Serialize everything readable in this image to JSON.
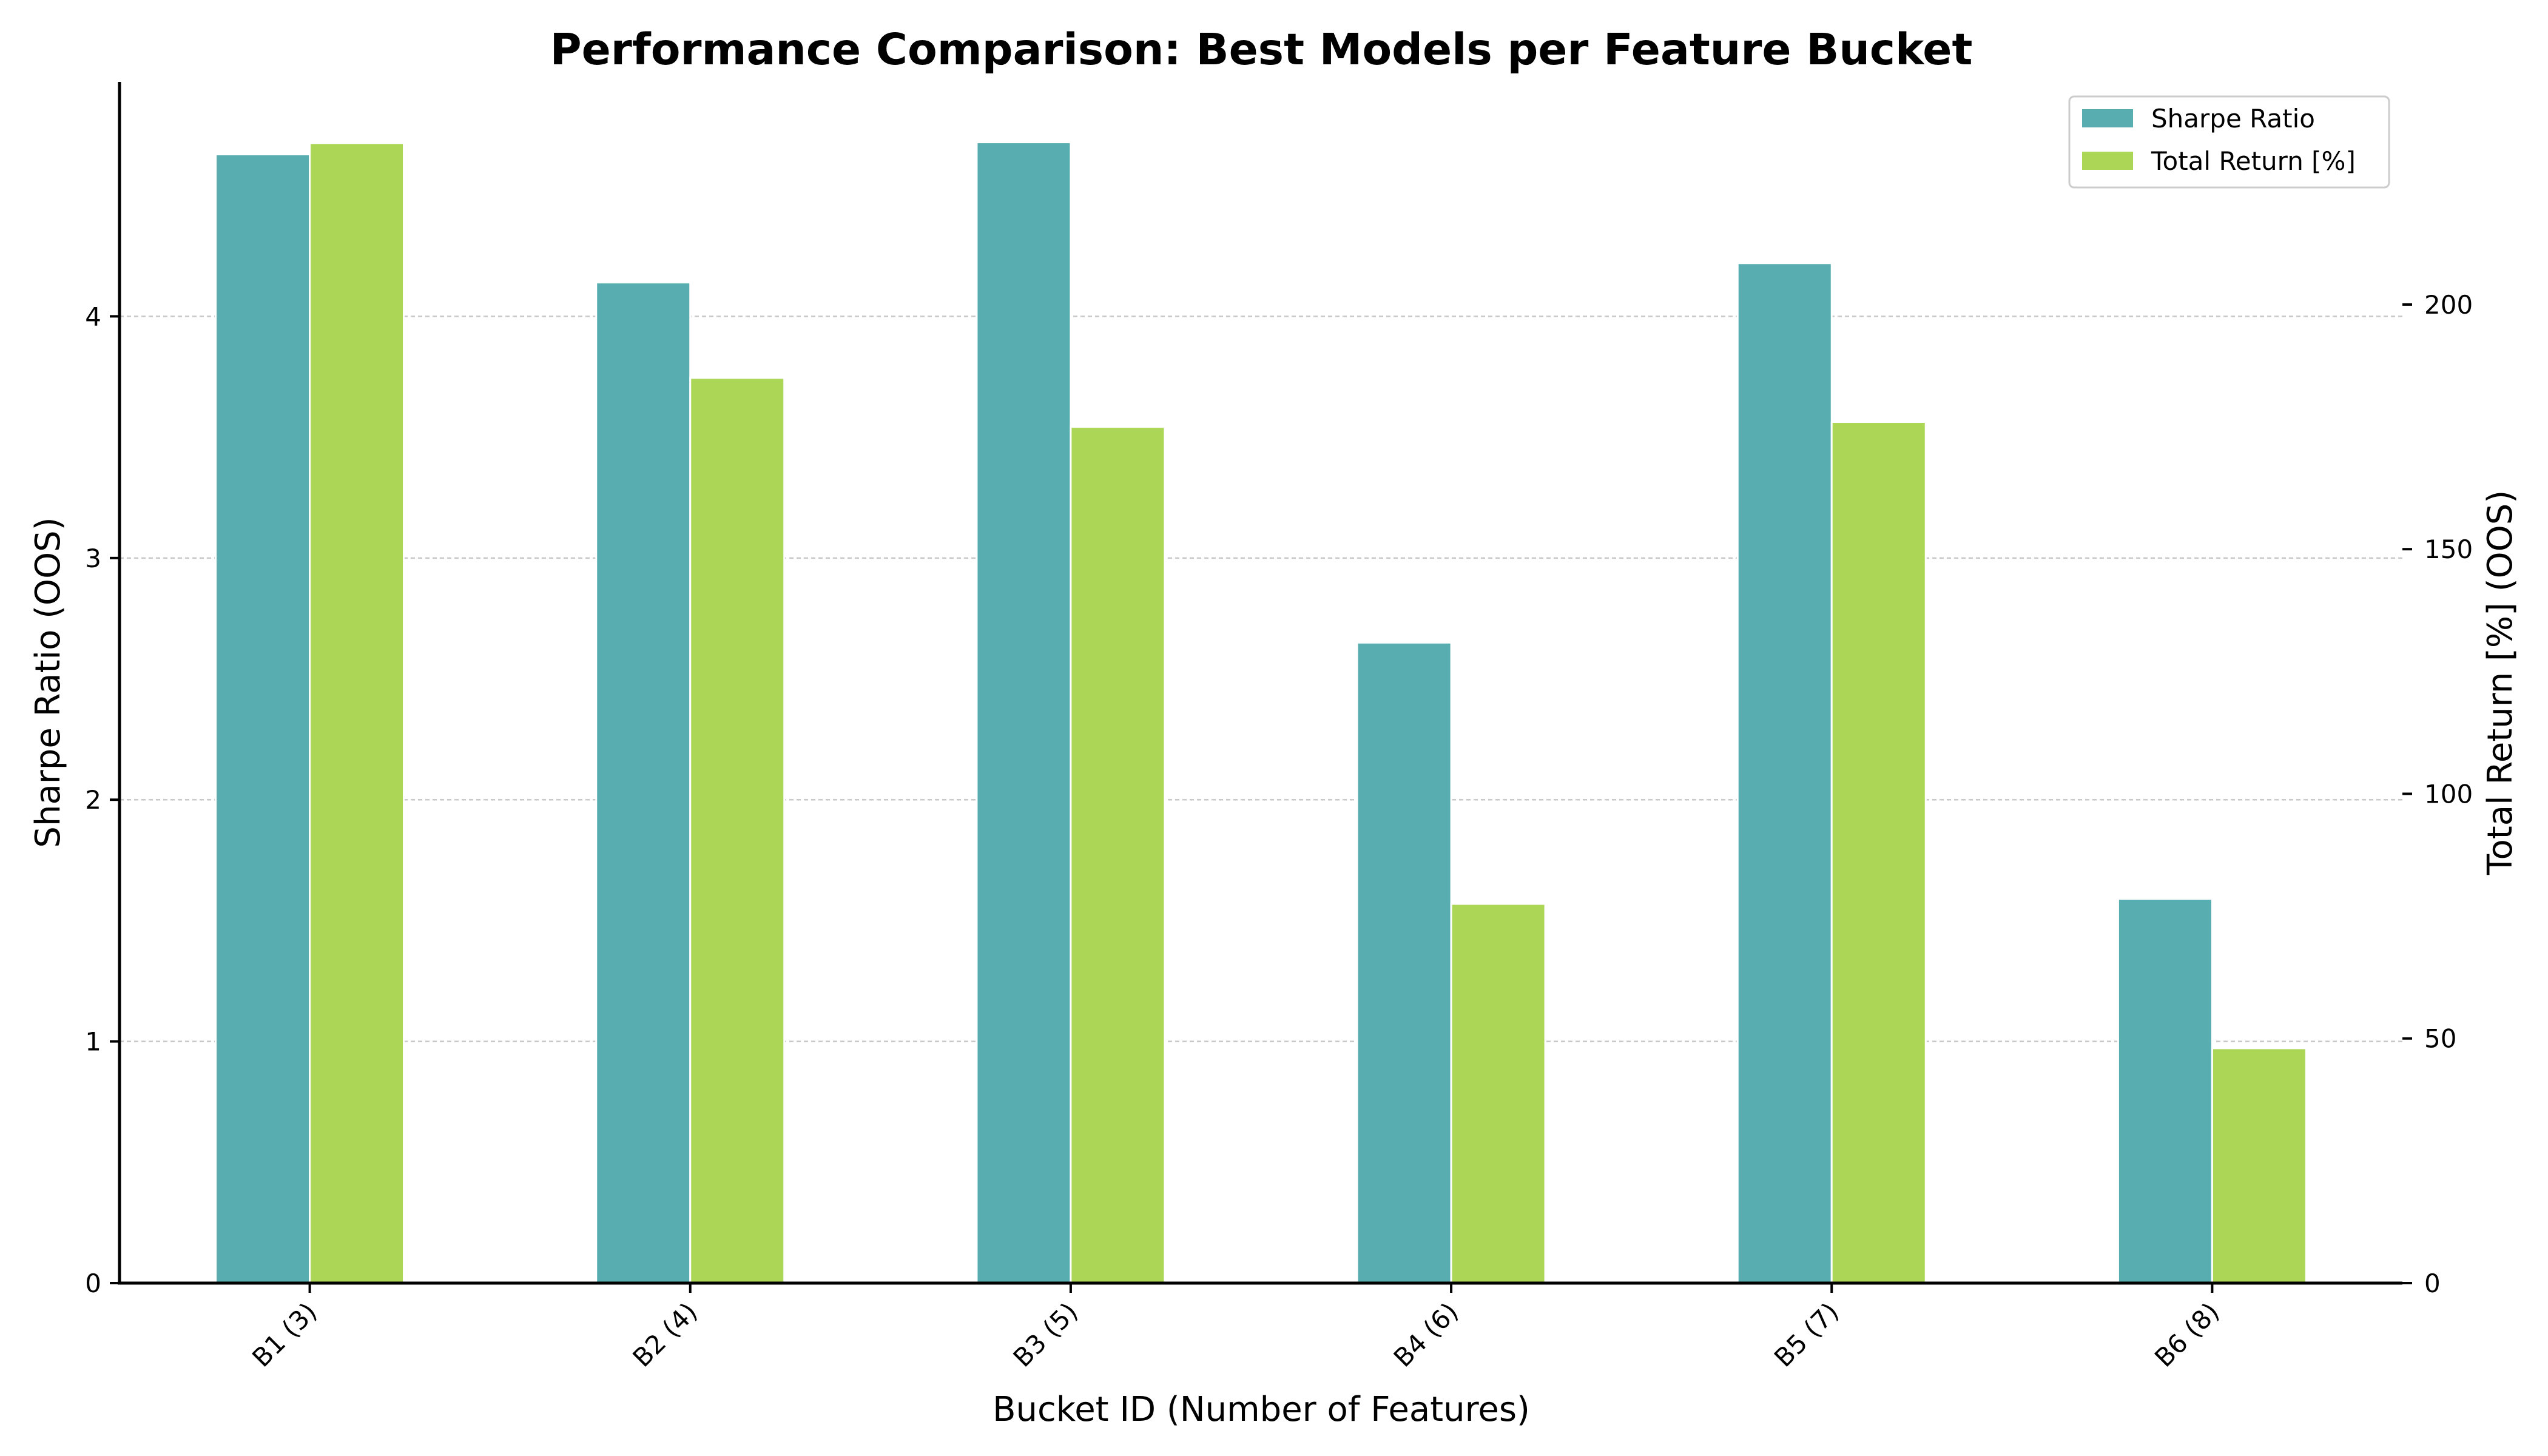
{
  "chart_data": {
    "type": "bar",
    "title": "Performance Comparison: Best Models per Feature Bucket",
    "xlabel": "Bucket ID (Number of Features)",
    "ylabel_left": "Sharpe Ratio (OOS)",
    "ylabel_right": "Total Return [%] (OOS)",
    "categories": [
      "B1 (3)",
      "B2 (4)",
      "B3 (5)",
      "B4 (6)",
      "B5 (7)",
      "B6 (8)"
    ],
    "series": [
      {
        "name": "Sharpe Ratio",
        "axis": "left",
        "color": "#57adb0",
        "values": [
          4.67,
          4.14,
          4.72,
          2.65,
          4.22,
          1.59
        ]
      },
      {
        "name": "Total Return [%]",
        "axis": "right",
        "color": "#acd655",
        "values": [
          233.0,
          185.0,
          175.0,
          77.5,
          176.0,
          48.0
        ]
      }
    ],
    "ylim_left": [
      0,
      4.97
    ],
    "ylim_right": [
      0,
      245.5
    ],
    "yticks_left": [
      "0",
      "1",
      "2",
      "3",
      "4"
    ],
    "yticks_right": [
      "0",
      "50",
      "100",
      "150",
      "200"
    ],
    "grid": "horizontal dashed (left axis)",
    "legend_position": "top-right"
  }
}
